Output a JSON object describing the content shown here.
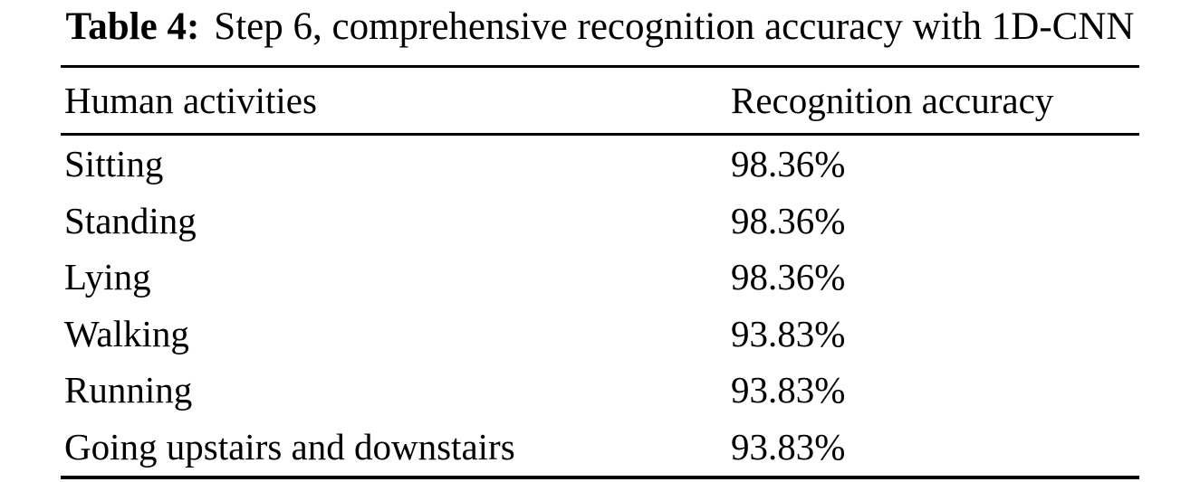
{
  "caption": {
    "label": "Table 4:",
    "text": "Step 6, comprehensive recognition accuracy with 1D-CNN"
  },
  "table": {
    "columns": [
      "Human activities",
      "Recognition accuracy"
    ],
    "rows": [
      {
        "activity": "Sitting",
        "accuracy": "98.36%"
      },
      {
        "activity": "Standing",
        "accuracy": "98.36%"
      },
      {
        "activity": "Lying",
        "accuracy": "98.36%"
      },
      {
        "activity": "Walking",
        "accuracy": "93.83%"
      },
      {
        "activity": "Running",
        "accuracy": "93.83%"
      },
      {
        "activity": "Going upstairs and downstairs",
        "accuracy": "93.83%"
      }
    ]
  },
  "colors": {
    "text": "#000000",
    "background": "#ffffff",
    "rule": "#000000"
  }
}
